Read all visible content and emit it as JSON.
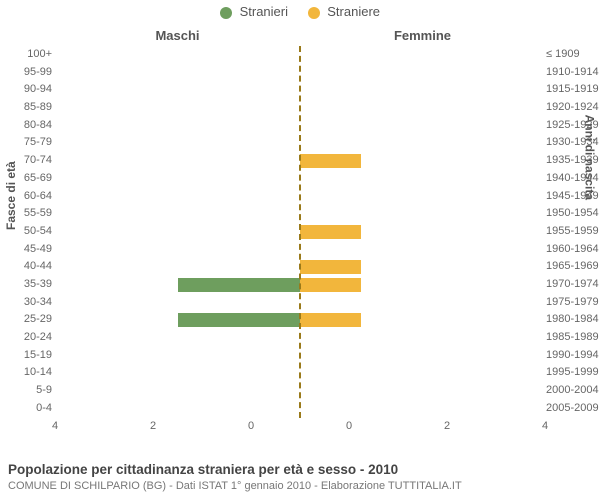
{
  "legend": {
    "male": {
      "label": "Stranieri",
      "color": "#6e9e5e"
    },
    "female": {
      "label": "Straniere",
      "color": "#f2b63c"
    }
  },
  "columns": {
    "left": "Maschi",
    "right": "Femmine"
  },
  "axes": {
    "left_label": "Fasce di età",
    "right_label": "Anni di nascita",
    "x_max": 4,
    "x_ticks": [
      4,
      2,
      0,
      0,
      2,
      4
    ]
  },
  "center_line_color": "#9a7a1a",
  "background_color": "#ffffff",
  "rows": [
    {
      "age": "100+",
      "cohort": "≤ 1909",
      "m": 0,
      "f": 0
    },
    {
      "age": "95-99",
      "cohort": "1910-1914",
      "m": 0,
      "f": 0
    },
    {
      "age": "90-94",
      "cohort": "1915-1919",
      "m": 0,
      "f": 0
    },
    {
      "age": "85-89",
      "cohort": "1920-1924",
      "m": 0,
      "f": 0
    },
    {
      "age": "80-84",
      "cohort": "1925-1929",
      "m": 0,
      "f": 0
    },
    {
      "age": "75-79",
      "cohort": "1930-1934",
      "m": 0,
      "f": 0
    },
    {
      "age": "70-74",
      "cohort": "1935-1939",
      "m": 0,
      "f": 1
    },
    {
      "age": "65-69",
      "cohort": "1940-1944",
      "m": 0,
      "f": 0
    },
    {
      "age": "60-64",
      "cohort": "1945-1949",
      "m": 0,
      "f": 0
    },
    {
      "age": "55-59",
      "cohort": "1950-1954",
      "m": 0,
      "f": 0
    },
    {
      "age": "50-54",
      "cohort": "1955-1959",
      "m": 0,
      "f": 1
    },
    {
      "age": "45-49",
      "cohort": "1960-1964",
      "m": 0,
      "f": 0
    },
    {
      "age": "40-44",
      "cohort": "1965-1969",
      "m": 0,
      "f": 1
    },
    {
      "age": "35-39",
      "cohort": "1970-1974",
      "m": 2,
      "f": 1
    },
    {
      "age": "30-34",
      "cohort": "1975-1979",
      "m": 0,
      "f": 0
    },
    {
      "age": "25-29",
      "cohort": "1980-1984",
      "m": 2,
      "f": 1
    },
    {
      "age": "20-24",
      "cohort": "1985-1989",
      "m": 0,
      "f": 0
    },
    {
      "age": "15-19",
      "cohort": "1990-1994",
      "m": 0,
      "f": 0
    },
    {
      "age": "10-14",
      "cohort": "1995-1999",
      "m": 0,
      "f": 0
    },
    {
      "age": "5-9",
      "cohort": "2000-2004",
      "m": 0,
      "f": 0
    },
    {
      "age": "0-4",
      "cohort": "2005-2009",
      "m": 0,
      "f": 0
    }
  ],
  "footer": {
    "title": "Popolazione per cittadinanza straniera per età e sesso - 2010",
    "subtitle": "COMUNE DI SCHILPARIO (BG) - Dati ISTAT 1° gennaio 2010 - Elaborazione TUTTITALIA.IT"
  }
}
